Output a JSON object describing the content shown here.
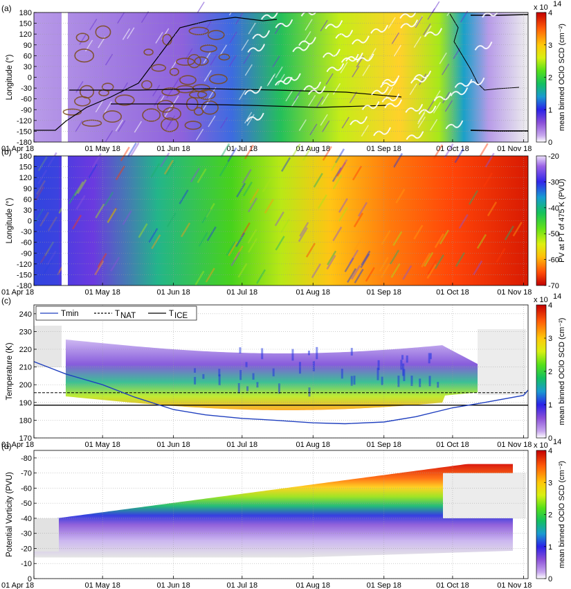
{
  "chart_data": [
    {
      "panel_label": "(a)",
      "type": "heatmap",
      "ylabel": "Longitude (°)",
      "ylim": [
        -180,
        180
      ],
      "yticks": [
        "180",
        "150",
        "120",
        "90",
        "60",
        "30",
        "0",
        "-30",
        "-60",
        "-90",
        "-120",
        "-150",
        "-180"
      ],
      "xticks": [
        "01 Apr 18",
        "01 May 18",
        "01 Jun 18",
        "01 Jul 18",
        "01 Aug 18",
        "01 Sep 18",
        "01 Oct 18",
        "01 Nov 18"
      ],
      "x_range": [
        "01 Apr 18",
        "03 Nov 18"
      ],
      "colorbar": {
        "label": "mean binned OClO SCD (cm⁻²)",
        "exponent": "x 10",
        "exponent_power": "14",
        "ticks": [
          "0",
          "1",
          "2",
          "3",
          "4"
        ],
        "range": [
          0,
          4
        ],
        "colormap": "purple-blue-green-yellow-red"
      },
      "overlays": [
        "black contour (vortex edge)",
        "white contour",
        "brown contour"
      ],
      "grid": true
    },
    {
      "panel_label": "(b)",
      "type": "heatmap",
      "ylabel": "Longitude (°)",
      "ylim": [
        -180,
        180
      ],
      "yticks": [
        "180",
        "150",
        "120",
        "90",
        "60",
        "30",
        "0",
        "-30",
        "-60",
        "-90",
        "-120",
        "-150",
        "-180"
      ],
      "xticks": [
        "01 Apr 18",
        "01 May 18",
        "01 Jun 18",
        "01 Jul 18",
        "01 Aug 18",
        "01 Sep 18",
        "01 Oct 18",
        "01 Nov 18"
      ],
      "x_range": [
        "01 Apr 18",
        "03 Nov 18"
      ],
      "colorbar": {
        "label": "PV at PT of 475 K (PVU)",
        "ticks": [
          "-20",
          "-30",
          "-40",
          "-50",
          "-60",
          "-70"
        ],
        "range": [
          -70,
          -20
        ],
        "colormap": "red-yellow-green-blue-purple"
      },
      "grid": true
    },
    {
      "panel_label": "(c)",
      "type": "heatmap",
      "ylabel": "Temperature (K)",
      "ylim": [
        170,
        245
      ],
      "yticks": [
        "240",
        "230",
        "220",
        "210",
        "200",
        "190",
        "180",
        "170"
      ],
      "xticks": [
        "01 Apr 18",
        "01 May 18",
        "01 Jun 18",
        "01 Jul 18",
        "01 Aug 18",
        "01 Sep 18",
        "01 Oct 18",
        "01 Nov 18"
      ],
      "x_range": [
        "01 Apr 18",
        "03 Nov 18"
      ],
      "colorbar": {
        "label": "mean binned OClO SCD (cm⁻²)",
        "exponent": "x 10",
        "exponent_power": "14",
        "ticks": [
          "0",
          "1",
          "2",
          "3",
          "4"
        ],
        "range": [
          0,
          4
        ],
        "colormap": "purple-blue-green-yellow-red"
      },
      "legend": {
        "placement": "top-left",
        "entries": [
          {
            "label": "Tmin",
            "style": "solid",
            "color": "#1f3fbf"
          },
          {
            "label": "T",
            "sub": "NAT",
            "style": "dashed",
            "color": "#000000"
          },
          {
            "label": "T",
            "sub": "ICE",
            "style": "solid",
            "color": "#000000"
          }
        ]
      },
      "series": [
        {
          "name": "T_NAT",
          "value": 195.5
        },
        {
          "name": "T_ICE",
          "value": 188.5
        },
        {
          "name": "Tmin",
          "x": [
            "01 Apr 18",
            "05 Apr 18",
            "15 Apr 18",
            "01 May 18",
            "15 May 18",
            "01 Jun 18",
            "15 Jun 18",
            "01 Jul 18",
            "15 Jul 18",
            "01 Aug 18",
            "15 Aug 18",
            "01 Sep 18",
            "15 Sep 18",
            "01 Oct 18",
            "15 Oct 18",
            "01 Nov 18",
            "03 Nov 18"
          ],
          "y": [
            213,
            211,
            206,
            200,
            193,
            186,
            183,
            181,
            180,
            178.5,
            178,
            179,
            182,
            187,
            190,
            194,
            197
          ]
        }
      ],
      "grid": true
    },
    {
      "panel_label": "(d)",
      "type": "heatmap",
      "ylabel": "Potential Vorticity (PVU)",
      "ylim": [
        0,
        -85
      ],
      "yticks": [
        "-80",
        "-70",
        "-60",
        "-50",
        "-40",
        "-30",
        "-20",
        "-10",
        "0"
      ],
      "xticks": [
        "01 Apr 18",
        "01 May 18",
        "01 Jun 18",
        "01 Jul 18",
        "01 Aug 18",
        "01 Sep 18",
        "01 Oct 18",
        "01 Nov 18"
      ],
      "x_range": [
        "01 Apr 18",
        "03 Nov 18"
      ],
      "colorbar": {
        "label": "mean binned OClO SCD (cm⁻²)",
        "exponent": "x 10",
        "exponent_power": "14",
        "ticks": [
          "0",
          "1",
          "2",
          "3",
          "4"
        ],
        "range": [
          0,
          4
        ],
        "colormap": "purple-blue-green-yellow-red"
      },
      "grid": true
    }
  ]
}
